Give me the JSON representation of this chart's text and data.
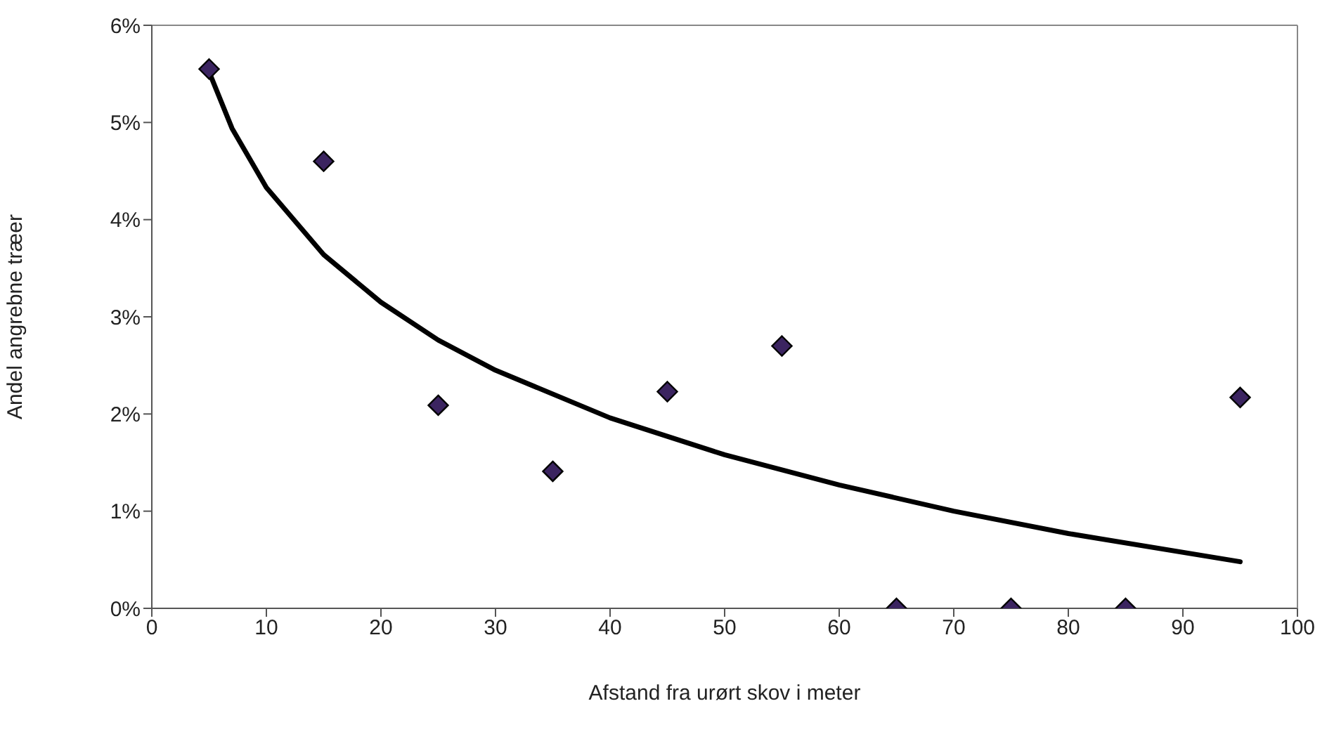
{
  "chart_data": {
    "type": "scatter",
    "xlabel": "Afstand fra urørt skov i meter",
    "ylabel": "Andel angrebne træer",
    "xlim": [
      0,
      100
    ],
    "xticks": [
      0,
      10,
      20,
      30,
      40,
      50,
      60,
      70,
      80,
      90,
      100
    ],
    "ylim": [
      0,
      6
    ],
    "yticks": [
      {
        "value": 0,
        "label": "0%"
      },
      {
        "value": 1,
        "label": "1%"
      },
      {
        "value": 2,
        "label": "2%"
      },
      {
        "value": 3,
        "label": "3%"
      },
      {
        "value": 4,
        "label": "4%"
      },
      {
        "value": 5,
        "label": "5%"
      },
      {
        "value": 6,
        "label": "6%"
      }
    ],
    "series": [
      {
        "marker": "diamond",
        "color": "#3b2460",
        "x": [
          5,
          15,
          25,
          35,
          45,
          55,
          65,
          75,
          85,
          95
        ],
        "values": [
          5.55,
          4.6,
          2.09,
          1.41,
          2.23,
          2.7,
          0,
          0,
          0,
          2.17
        ]
      },
      {
        "type": "line",
        "color": "#000000",
        "x": [
          5,
          7,
          10,
          15,
          20,
          25,
          30,
          40,
          50,
          60,
          70,
          80,
          95
        ],
        "values": [
          5.52,
          4.94,
          4.33,
          3.64,
          3.15,
          2.76,
          2.45,
          1.96,
          1.58,
          1.27,
          1.0,
          0.77,
          0.48
        ]
      }
    ]
  }
}
